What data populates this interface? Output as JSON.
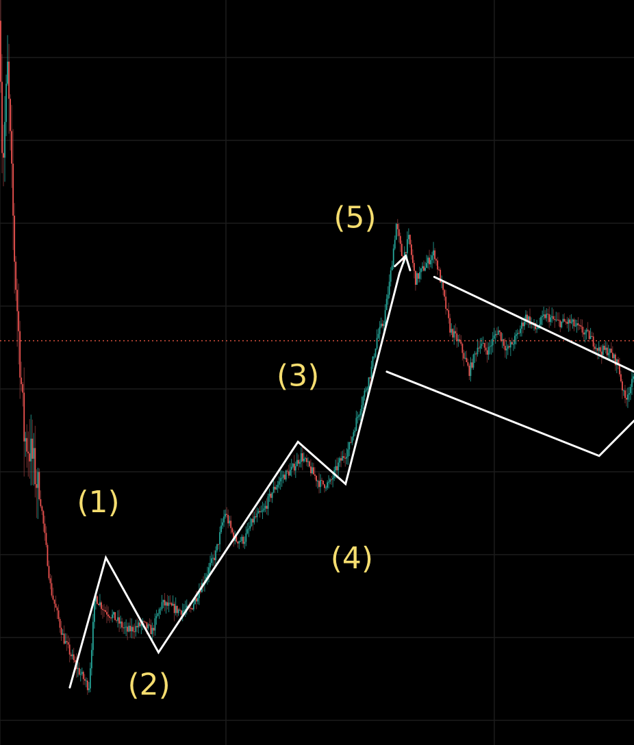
{
  "theme": {
    "background": "#000000",
    "grid": "#1c1c1c",
    "up_candle": "#26a69a",
    "down_candle": "#ef5350",
    "wick": "#8a3a3a",
    "price_line": "#e0533f",
    "annotation": "#ffffff",
    "wave_label": "#f5dd6f"
  },
  "chart_data": {
    "type": "candlestick",
    "title": "",
    "xlabel": "",
    "ylabel": "",
    "xlim": [
      0,
      100
    ],
    "ylim": [
      0,
      100
    ],
    "grid": true,
    "current_price_line": 53.4,
    "price_path": [
      [
        0,
        99
      ],
      [
        0.4,
        78
      ],
      [
        1.2,
        92
      ],
      [
        2.3,
        65
      ],
      [
        3.8,
        40
      ],
      [
        5,
        37
      ],
      [
        6.5,
        30
      ],
      [
        8,
        18
      ],
      [
        10,
        11
      ],
      [
        12,
        7
      ],
      [
        14,
        4
      ],
      [
        15,
        17
      ],
      [
        16.5,
        15
      ],
      [
        18,
        14
      ],
      [
        20,
        12
      ],
      [
        22.5,
        13
      ],
      [
        24,
        12
      ],
      [
        25.5,
        16
      ],
      [
        28,
        15
      ],
      [
        30,
        15
      ],
      [
        32,
        19
      ],
      [
        34,
        23
      ],
      [
        35.5,
        29
      ],
      [
        37,
        25
      ],
      [
        38.5,
        25
      ],
      [
        40,
        28
      ],
      [
        41.5,
        29
      ],
      [
        43,
        32
      ],
      [
        44.5,
        34
      ],
      [
        46,
        35
      ],
      [
        47.5,
        37
      ],
      [
        49,
        35
      ],
      [
        50.5,
        33
      ],
      [
        52,
        33
      ],
      [
        53.5,
        36
      ],
      [
        55,
        38
      ],
      [
        56.2,
        42
      ],
      [
        57.5,
        46
      ],
      [
        58.5,
        49
      ],
      [
        59.5,
        54
      ],
      [
        60.5,
        56
      ],
      [
        61.5,
        62
      ],
      [
        62.5,
        70
      ],
      [
        63.5,
        65
      ],
      [
        64.5,
        68
      ],
      [
        65.5,
        62
      ],
      [
        67,
        64
      ],
      [
        68.5,
        66
      ],
      [
        69.5,
        62
      ],
      [
        71,
        55
      ],
      [
        72.5,
        53
      ],
      [
        74,
        49
      ],
      [
        75.5,
        53
      ],
      [
        77,
        52
      ],
      [
        78.5,
        55
      ],
      [
        80,
        52
      ],
      [
        81.5,
        54
      ],
      [
        83,
        57
      ],
      [
        84.5,
        55
      ],
      [
        86,
        57
      ],
      [
        88,
        56
      ],
      [
        90,
        56
      ],
      [
        91.5,
        55
      ],
      [
        93,
        54
      ],
      [
        94.5,
        52
      ],
      [
        96,
        52
      ],
      [
        97.5,
        50
      ],
      [
        98.5,
        45
      ],
      [
        100,
        48
      ]
    ],
    "annotations": {
      "impulse_wave": [
        [
          11,
          4
        ],
        [
          16.7,
          22.5
        ],
        [
          25,
          9
        ],
        [
          47,
          39
        ],
        [
          54.5,
          33
        ],
        [
          63,
          63
        ],
        [
          64,
          65.5
        ]
      ],
      "channel_upper": [
        [
          68.5,
          62.5
        ],
        [
          100,
          49
        ]
      ],
      "channel_lower": [
        [
          61,
          49
        ],
        [
          94.5,
          37
        ],
        [
          100,
          42
        ]
      ],
      "wave_labels": [
        {
          "text": "(1)",
          "x": 15.5,
          "y": 29
        },
        {
          "text": "(2)",
          "x": 23.5,
          "y": 3
        },
        {
          "text": "(3)",
          "x": 47,
          "y": 47
        },
        {
          "text": "(4)",
          "x": 55.5,
          "y": 21
        },
        {
          "text": "(5)",
          "x": 56,
          "y": 69.5
        }
      ]
    }
  }
}
